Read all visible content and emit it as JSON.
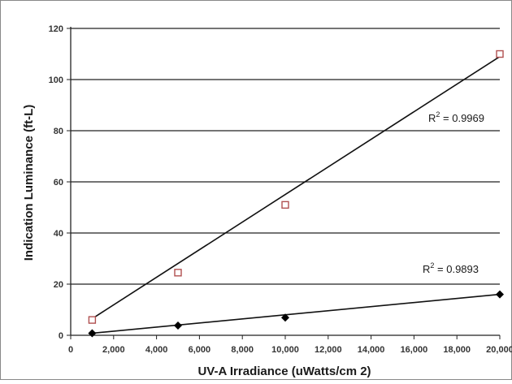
{
  "chart_data": {
    "type": "scatter",
    "xlabel": "UV-A Irradiance (uWatts/cm 2)",
    "ylabel": "Indication Luminance (ft-L)",
    "xlim": [
      0,
      20000
    ],
    "ylim": [
      0,
      120
    ],
    "x_ticks": [
      {
        "value": 0,
        "label": "0"
      },
      {
        "value": 2000,
        "label": "2,000"
      },
      {
        "value": 4000,
        "label": "4,000"
      },
      {
        "value": 6000,
        "label": "6,000"
      },
      {
        "value": 8000,
        "label": "8,000"
      },
      {
        "value": 10000,
        "label": "10,000"
      },
      {
        "value": 12000,
        "label": "12,000"
      },
      {
        "value": 14000,
        "label": "14,000"
      },
      {
        "value": 16000,
        "label": "16,000"
      },
      {
        "value": 18000,
        "label": "18,000"
      },
      {
        "value": 20000,
        "label": "20,000"
      }
    ],
    "y_ticks": [
      {
        "value": 0,
        "label": "0"
      },
      {
        "value": 20,
        "label": "20"
      },
      {
        "value": 40,
        "label": "40"
      },
      {
        "value": 60,
        "label": "60"
      },
      {
        "value": 80,
        "label": "80"
      },
      {
        "value": 100,
        "label": "100"
      },
      {
        "value": 120,
        "label": "120"
      }
    ],
    "grid": true,
    "series": [
      {
        "marker": "open-square",
        "color": "#b05050",
        "x": [
          1000,
          5000,
          10000,
          20000
        ],
        "y": [
          6,
          24.5,
          51,
          110
        ],
        "trendline": {
          "x": [
            1000,
            20000
          ],
          "y": [
            6.5,
            109
          ],
          "r2_label": "R² = 0.9969"
        }
      },
      {
        "marker": "filled-diamond",
        "color": "#000000",
        "x": [
          1000,
          5000,
          10000,
          20000
        ],
        "y": [
          0.8,
          3.8,
          6.9,
          16
        ],
        "trendline": {
          "x": [
            1000,
            20000
          ],
          "y": [
            0.8,
            16
          ],
          "r2_label": "R² = 0.9893"
        }
      }
    ]
  }
}
